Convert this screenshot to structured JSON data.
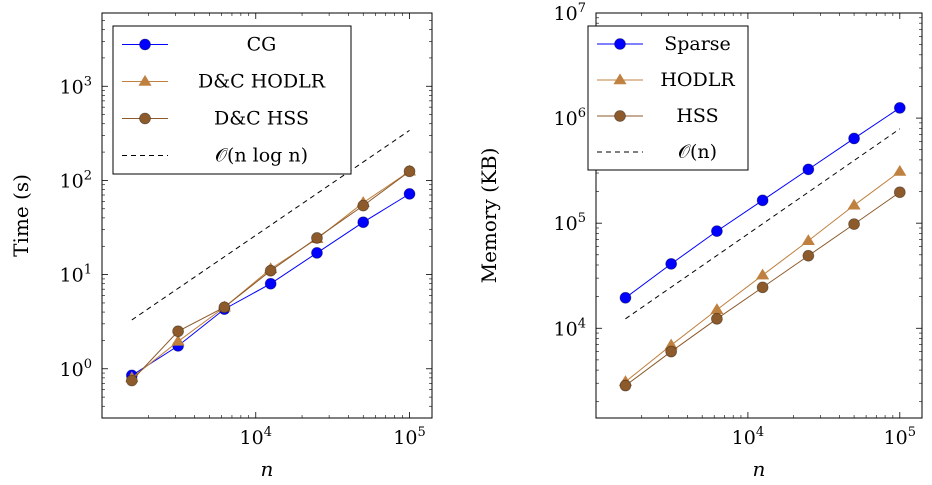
{
  "chart_data": [
    {
      "type": "line",
      "x_scale": "log",
      "y_scale": "log",
      "xlim": [
        1000,
        140000
      ],
      "ylim": [
        0.3,
        6000
      ],
      "x_ticks": [
        {
          "value": 10000,
          "label": "10",
          "exp": "4"
        },
        {
          "value": 100000,
          "label": "10",
          "exp": "5"
        }
      ],
      "y_ticks": [
        {
          "value": 1,
          "label": "10",
          "exp": "0"
        },
        {
          "value": 10,
          "label": "10",
          "exp": "1"
        },
        {
          "value": 100,
          "label": "10",
          "exp": "2"
        },
        {
          "value": 1000,
          "label": "10",
          "exp": "3"
        }
      ],
      "xlabel": "n",
      "ylabel": "Time (s)",
      "grid": false,
      "legend_position": "top-left",
      "x": [
        1563,
        3125,
        6250,
        12500,
        25000,
        50000,
        100000
      ],
      "series": [
        {
          "name": "CG",
          "marker": "circle",
          "color": "#0000ff",
          "values": [
            0.85,
            1.75,
            4.3,
            8.0,
            17.0,
            36.0,
            72.0
          ]
        },
        {
          "name": "D&C HODLR",
          "marker": "triangle",
          "color": "#bf8040",
          "values": [
            0.8,
            1.95,
            4.5,
            11.5,
            24.0,
            58.0,
            125.0
          ]
        },
        {
          "name": "D&C HSS",
          "marker": "circle",
          "color": "#8c5a2b",
          "values": [
            0.75,
            2.5,
            4.5,
            11.0,
            24.5,
            54.0,
            125.0
          ]
        },
        {
          "name": "𝒪(n log n)",
          "line_style": "dashed",
          "color": "#000000",
          "x": [
            1563,
            100000
          ],
          "values": [
            3.3,
            340.0
          ]
        }
      ]
    },
    {
      "type": "line",
      "x_scale": "log",
      "y_scale": "log",
      "xlim": [
        1000,
        140000
      ],
      "ylim": [
        1400,
        10000000
      ],
      "x_ticks": [
        {
          "value": 10000,
          "label": "10",
          "exp": "4"
        },
        {
          "value": 100000,
          "label": "10",
          "exp": "5"
        }
      ],
      "y_ticks": [
        {
          "value": 10000,
          "label": "10",
          "exp": "4"
        },
        {
          "value": 100000,
          "label": "10",
          "exp": "5"
        },
        {
          "value": 1000000,
          "label": "10",
          "exp": "6"
        },
        {
          "value": 10000000,
          "label": "10",
          "exp": "7"
        }
      ],
      "xlabel": "n",
      "ylabel": "Memory (KB)",
      "grid": false,
      "legend_position": "top-left",
      "x": [
        1563,
        3125,
        6250,
        12500,
        25000,
        50000,
        100000
      ],
      "series": [
        {
          "name": "Sparse",
          "marker": "circle",
          "color": "#0000ff",
          "values": [
            19500,
            41000,
            84000,
            165000,
            325000,
            640000,
            1250000
          ]
        },
        {
          "name": "HODLR",
          "marker": "triangle",
          "color": "#bf8040",
          "values": [
            3100,
            6900,
            15000,
            32000,
            68000,
            148000,
            310000
          ]
        },
        {
          "name": "HSS",
          "marker": "circle",
          "color": "#8c5a2b",
          "values": [
            2850,
            6000,
            12300,
            24500,
            49000,
            98000,
            197000
          ]
        },
        {
          "name": "𝒪(n)",
          "line_style": "dashed",
          "color": "#000000",
          "x": [
            1563,
            100000
          ],
          "values": [
            12300,
            790000
          ]
        }
      ]
    }
  ]
}
